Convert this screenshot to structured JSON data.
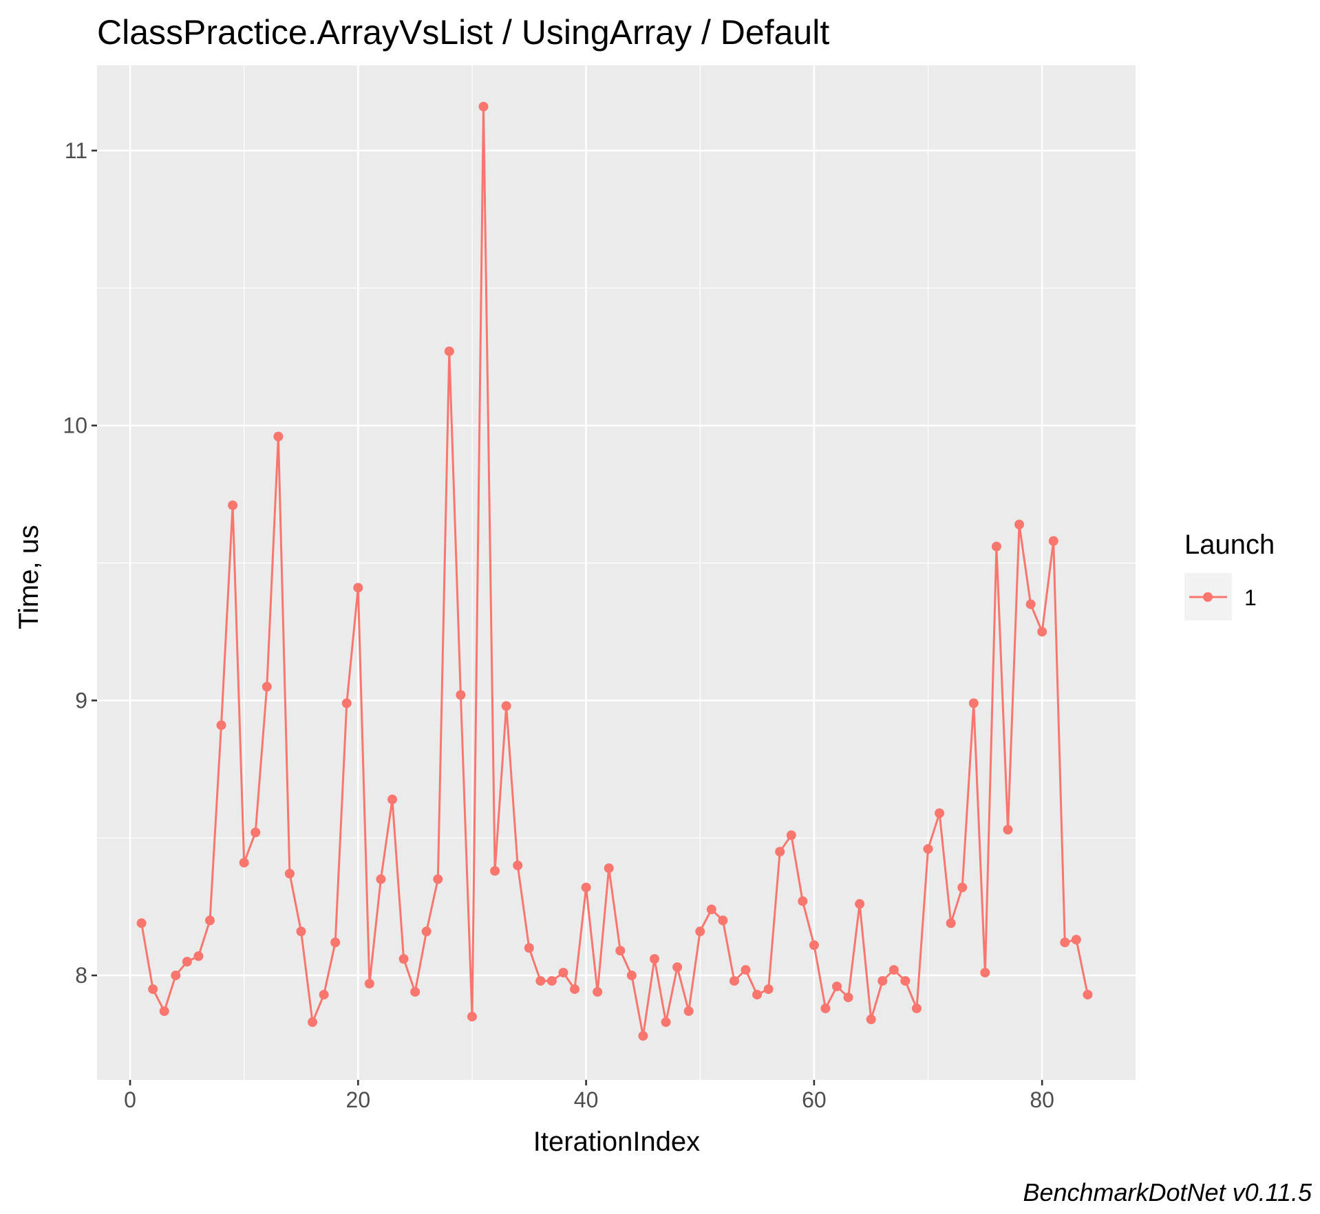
{
  "chart_data": {
    "type": "line",
    "title": "ClassPractice.ArrayVsList / UsingArray / Default",
    "xlabel": "IterationIndex",
    "ylabel": "Time, us",
    "caption": "BenchmarkDotNet v0.11.5",
    "xlim": [
      -2.9,
      88.2
    ],
    "ylim": [
      7.62,
      11.31
    ],
    "x_ticks": [
      0,
      20,
      40,
      60,
      80
    ],
    "x_tick_labels": [
      "0",
      "20",
      "40",
      "60",
      "80"
    ],
    "y_ticks": [
      8,
      9,
      10,
      11
    ],
    "y_tick_labels": [
      "8",
      "9",
      "10",
      "11"
    ],
    "x_minor_ticks": [
      10,
      30,
      50,
      70
    ],
    "y_minor_ticks": [
      8.5,
      9.5,
      10.5
    ],
    "grid": true,
    "legend": {
      "title": "Launch",
      "position": "right"
    },
    "series": [
      {
        "name": "1",
        "color": "#F8766D",
        "x": [
          1,
          2,
          3,
          4,
          5,
          6,
          7,
          8,
          9,
          10,
          11,
          12,
          13,
          14,
          15,
          16,
          17,
          18,
          19,
          20,
          21,
          22,
          23,
          24,
          25,
          26,
          27,
          28,
          29,
          30,
          31,
          32,
          33,
          34,
          35,
          36,
          37,
          38,
          39,
          40,
          41,
          42,
          43,
          44,
          45,
          46,
          47,
          48,
          49,
          50,
          51,
          52,
          53,
          54,
          55,
          56,
          57,
          58,
          59,
          60,
          61,
          62,
          63,
          64,
          65,
          66,
          67,
          68,
          69,
          70,
          71,
          72,
          73,
          74,
          75,
          76,
          77,
          78,
          79,
          80,
          81,
          82,
          83,
          84
        ],
        "values": [
          8.19,
          7.95,
          7.87,
          8.0,
          8.05,
          8.07,
          8.2,
          8.91,
          9.71,
          8.41,
          8.52,
          9.05,
          9.96,
          8.37,
          8.16,
          7.83,
          7.93,
          8.12,
          8.99,
          9.41,
          7.97,
          8.35,
          8.64,
          8.06,
          7.94,
          8.16,
          8.35,
          10.27,
          9.02,
          7.85,
          11.16,
          8.38,
          8.98,
          8.4,
          8.1,
          7.98,
          7.98,
          8.01,
          7.95,
          8.32,
          7.94,
          8.39,
          8.09,
          8.0,
          7.78,
          8.06,
          7.83,
          8.03,
          7.87,
          8.16,
          8.24,
          8.2,
          7.98,
          8.02,
          7.93,
          7.95,
          8.45,
          8.51,
          8.27,
          8.11,
          7.88,
          7.96,
          7.92,
          8.26,
          7.84,
          7.98,
          8.02,
          7.98,
          7.88,
          8.46,
          8.59,
          8.19,
          8.32,
          8.99,
          8.01,
          9.56,
          8.53,
          9.64,
          9.35,
          9.25,
          9.58,
          8.12,
          8.13,
          7.93
        ]
      }
    ]
  }
}
